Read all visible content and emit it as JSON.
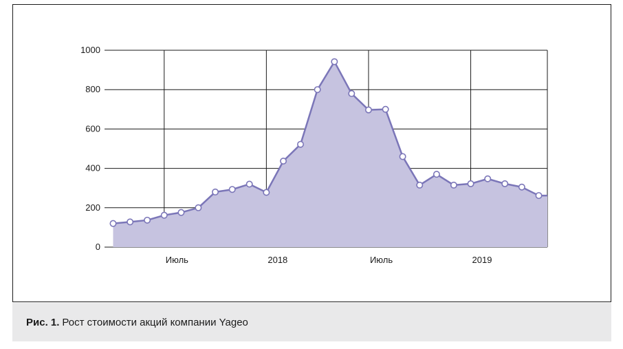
{
  "figure": {
    "caption_label": "Рис. 1.",
    "caption_text": "Рост стоимости акций компании Yageo"
  },
  "colors": {
    "line": "#7b76b8",
    "fill": "#c6c3e0",
    "marker_fill": "#ffffff",
    "grid": "#1a1a1a"
  },
  "chart_data": {
    "type": "area",
    "title": "",
    "xlabel": "",
    "ylabel": "",
    "ylim": [
      0,
      1000
    ],
    "yticks": [
      0,
      200,
      400,
      600,
      800,
      1000
    ],
    "x_ticks": [
      {
        "label": "Июль",
        "at": 2017.5
      },
      {
        "label": "2018",
        "at": 2018.0
      },
      {
        "label": "Июль",
        "at": 2018.5
      },
      {
        "label": "2019",
        "at": 2019.0
      }
    ],
    "xlim": [
      2017.208,
      2019.375
    ],
    "grid": true,
    "legend": "none",
    "series": [
      {
        "x": [
          2017.25,
          2017.333,
          2017.417,
          2017.5,
          2017.583,
          2017.667,
          2017.75,
          2017.833,
          2017.917,
          2018.0,
          2018.083,
          2018.167,
          2018.25,
          2018.333,
          2018.417,
          2018.5,
          2018.583,
          2018.667,
          2018.75,
          2018.833,
          2018.917,
          2019.0,
          2019.083,
          2019.167,
          2019.25,
          2019.333,
          2019.375
        ],
        "y": [
          120,
          128,
          137,
          162,
          176,
          200,
          280,
          293,
          320,
          278,
          437,
          522,
          800,
          942,
          780,
          697,
          700,
          460,
          315,
          370,
          315,
          322,
          347,
          322,
          305,
          262,
          262
        ]
      }
    ]
  }
}
